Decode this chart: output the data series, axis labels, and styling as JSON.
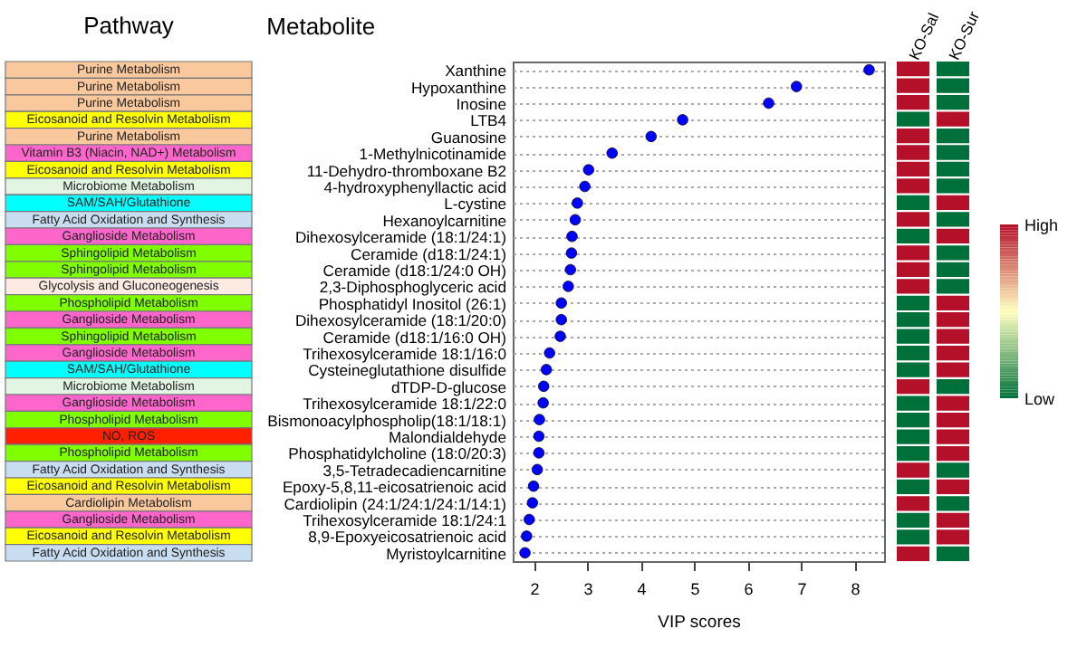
{
  "chart_data": [
    {
      "type": "other",
      "title": "Pathway",
      "categories": [
        "Purine Metabolism",
        "Purine Metabolism",
        "Purine Metabolism",
        "Eicosanoid and Resolvin Metabolism",
        "Purine Metabolism",
        "Vitamin B3 (Niacin, NAD+) Metabolism",
        "Eicosanoid and Resolvin Metabolism",
        "Microbiome Metabolism",
        "SAM/SAH/Glutathione",
        "Fatty Acid Oxidation and Synthesis",
        "Ganglioside Metabolism",
        "Sphingolipid Metabolism",
        "Sphingolipid Metabolism",
        "Glycolysis and Gluconeogenesis",
        "Phospholipid Metabolism",
        "Ganglioside Metabolism",
        "Sphingolipid Metabolism",
        "Ganglioside Metabolism",
        "SAM/SAH/Glutathione",
        "Microbiome Metabolism",
        "Ganglioside Metabolism",
        "Phospholipid Metabolism",
        "NO, ROS",
        "Phospholipid Metabolism",
        "Fatty Acid Oxidation and Synthesis",
        "Eicosanoid and Resolvin Metabolism",
        "Cardiolipin Metabolism",
        "Ganglioside Metabolism",
        "Eicosanoid and Resolvin Metabolism",
        "Fatty Acid Oxidation and Synthesis"
      ],
      "colors": [
        "#f9c89c",
        "#f9c89c",
        "#f9c89c",
        "#ffff00",
        "#f9c89c",
        "#ff66cc",
        "#ffff00",
        "#e2f5e2",
        "#00ffff",
        "#c9ddf0",
        "#ff66cc",
        "#80ff00",
        "#80ff00",
        "#fbebe3",
        "#80ff00",
        "#ff66cc",
        "#80ff00",
        "#ff66cc",
        "#00ffff",
        "#e2f5e2",
        "#ff66cc",
        "#80ff00",
        "#ff2000",
        "#80ff00",
        "#c9ddf0",
        "#ffff00",
        "#f9c89c",
        "#ff66cc",
        "#ffff00",
        "#c9ddf0"
      ]
    },
    {
      "type": "scatter",
      "orientation": "horizontal",
      "title": "Metabolite",
      "xlabel": "VIP scores",
      "categories": [
        "Xanthine",
        "Hypoxanthine",
        "Inosine",
        "LTB4",
        "Guanosine",
        "1-Methylnicotinamide",
        "11-Dehydro-thromboxane B2",
        "4-hydroxyphenyllactic acid",
        "L-cystine",
        "Hexanoylcarnitine",
        "Dihexosylceramide (18:1/24:1)",
        "Ceramide (d18:1/24:1)",
        "Ceramide (d18:1/24:0 OH)",
        "2,3-Diphosphoglyceric acid",
        "Phosphatidyl Inositol (26:1)",
        "Dihexosylceramide (18:1/20:0)",
        "Ceramide (d18:1/16:0 OH)",
        "Trihexosylceramide 18:1/16:0",
        "Cysteineglutathione disulfide",
        "dTDP-D-glucose",
        "Trihexosylceramide 18:1/22:0",
        "Bismonoacylphospholip(18:1/18:1)",
        "Malondialdehyde",
        "Phosphatidylcholine (18:0/20:3)",
        "3,5-Tetradecadiencarnitine",
        "Epoxy-5,8,11-eicosatrienoic acid",
        "Cardiolipin (24:1/24:1/24:1/14:1)",
        "Trihexosylceramide 18:1/24:1",
        "8,9-Epoxyeicosatrienoic acid",
        "Myristoylcarnitine"
      ],
      "values": [
        8.27,
        6.91,
        6.39,
        4.78,
        4.19,
        3.46,
        3.02,
        2.95,
        2.81,
        2.77,
        2.71,
        2.7,
        2.68,
        2.64,
        2.51,
        2.51,
        2.49,
        2.29,
        2.23,
        2.18,
        2.17,
        2.1,
        2.09,
        2.09,
        2.06,
        1.99,
        1.97,
        1.91,
        1.86,
        1.83
      ],
      "color": "#0000ff",
      "marker": "circle",
      "grid": "y",
      "xlim": [
        1.6,
        8.55
      ],
      "xticks": [
        2,
        3,
        4,
        5,
        6,
        7,
        8
      ]
    },
    {
      "type": "heatmap",
      "categories": [
        "KO-Sal",
        "KO-Sur"
      ],
      "cells": [
        [
          1,
          0
        ],
        [
          1,
          0
        ],
        [
          1,
          0
        ],
        [
          0,
          1
        ],
        [
          1,
          0
        ],
        [
          1,
          0
        ],
        [
          1,
          0
        ],
        [
          1,
          0
        ],
        [
          0,
          1
        ],
        [
          1,
          0
        ],
        [
          0,
          1
        ],
        [
          1,
          0
        ],
        [
          1,
          0
        ],
        [
          1,
          0
        ],
        [
          0,
          1
        ],
        [
          0,
          1
        ],
        [
          0,
          1
        ],
        [
          0,
          1
        ],
        [
          0,
          1
        ],
        [
          1,
          0
        ],
        [
          0,
          1
        ],
        [
          0,
          1
        ],
        [
          0,
          1
        ],
        [
          0,
          1
        ],
        [
          1,
          0
        ],
        [
          0,
          1
        ],
        [
          1,
          0
        ],
        [
          0,
          1
        ],
        [
          0,
          1
        ],
        [
          1,
          0
        ]
      ],
      "y_categories": [
        null,
        null,
        null,
        null,
        null,
        null,
        null,
        null,
        null,
        null,
        null,
        null,
        null,
        null,
        null,
        null,
        null,
        null,
        null,
        null,
        null,
        null,
        null,
        null,
        null,
        null,
        null,
        null,
        null,
        null
      ],
      "clim": [
        0,
        1
      ],
      "cticks": [
        {
          "value": 0,
          "label": "Low"
        },
        {
          "value": 1,
          "label": "High"
        }
      ],
      "colors": [
        "#00703a",
        "#ffffbf",
        "#b5102a"
      ]
    }
  ]
}
